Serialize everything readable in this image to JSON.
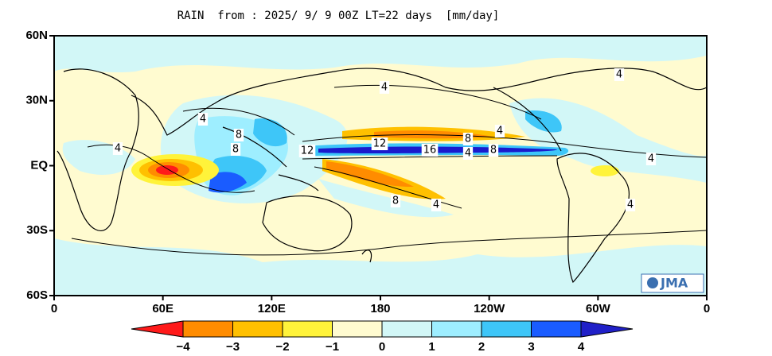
{
  "title": "RAIN  from : 2025/ 9/ 9 00Z LT=22 days  [mm/day]",
  "x_axis_labels": [
    "0",
    "60E",
    "120E",
    "180",
    "120W",
    "60W",
    "0"
  ],
  "y_axis_labels": [
    "60N",
    "30N",
    "EQ",
    "30S",
    "60S"
  ],
  "contour_labels": [
    "4",
    "8",
    "8",
    "4",
    "12",
    "12",
    "16",
    "8",
    "4",
    "8",
    "4",
    "4",
    "8",
    "4",
    "4",
    "4",
    "4"
  ],
  "colorbar": {
    "colors": [
      "#ff1a1a",
      "#ff8c00",
      "#ffc000",
      "#fff33a",
      "#fffbd0",
      "#d2f7f7",
      "#9eeeff",
      "#3ec6f8",
      "#1a5cff",
      "#2020c8"
    ],
    "labels": [
      "−4",
      "−3",
      "−2",
      "−1",
      "0",
      "1",
      "2",
      "3",
      "4"
    ]
  },
  "logo": "JMA"
}
